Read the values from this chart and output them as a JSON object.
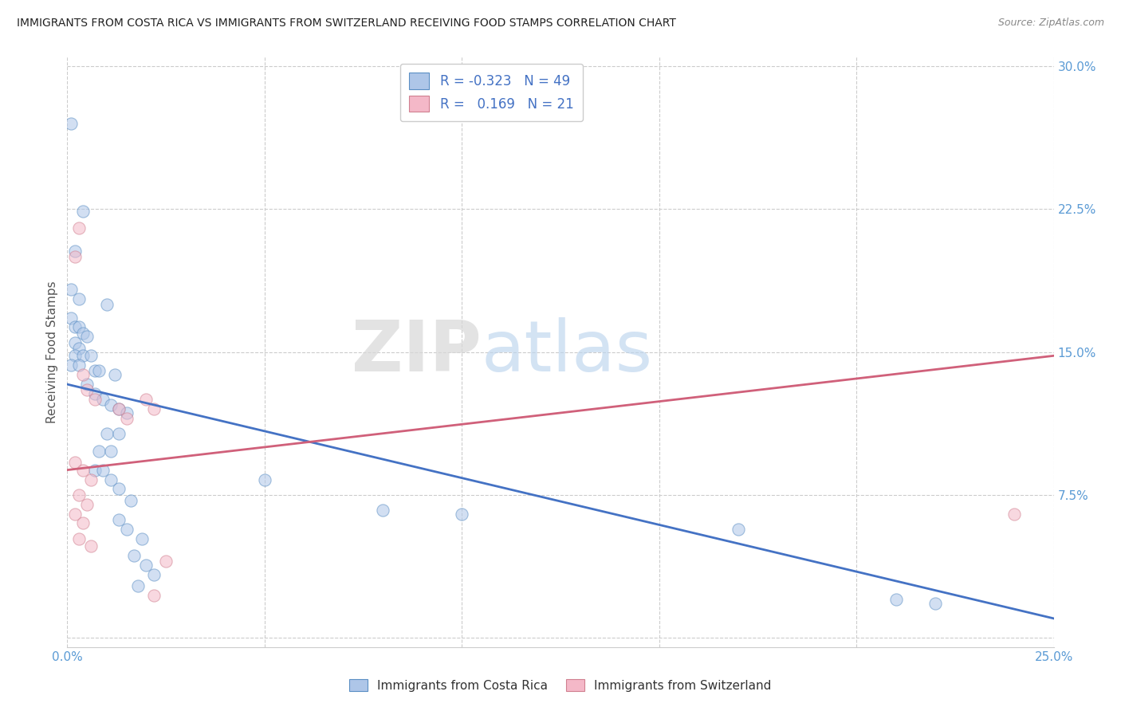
{
  "title": "IMMIGRANTS FROM COSTA RICA VS IMMIGRANTS FROM SWITZERLAND RECEIVING FOOD STAMPS CORRELATION CHART",
  "source": "Source: ZipAtlas.com",
  "ylabel": "Receiving Food Stamps",
  "xlim": [
    0.0,
    0.25
  ],
  "ylim": [
    -0.005,
    0.305
  ],
  "xticks": [
    0.0,
    0.05,
    0.1,
    0.15,
    0.2,
    0.25
  ],
  "xticklabels": [
    "0.0%",
    "",
    "",
    "",
    "",
    "25.0%"
  ],
  "yticks": [
    0.0,
    0.075,
    0.15,
    0.225,
    0.3
  ],
  "yticklabels": [
    "",
    "7.5%",
    "15.0%",
    "22.5%",
    "30.0%"
  ],
  "legend_entries": [
    {
      "label": "Immigrants from Costa Rica",
      "color": "#aec6e8",
      "edge": "#5b8fc4",
      "R": "-0.323",
      "N": "49"
    },
    {
      "label": "Immigrants from Switzerland",
      "color": "#f4b8c8",
      "edge": "#d08090",
      "R": "0.169",
      "N": "21"
    }
  ],
  "costa_rica_dots": [
    [
      0.001,
      0.27
    ],
    [
      0.004,
      0.224
    ],
    [
      0.002,
      0.203
    ],
    [
      0.001,
      0.183
    ],
    [
      0.003,
      0.178
    ],
    [
      0.01,
      0.175
    ],
    [
      0.001,
      0.168
    ],
    [
      0.002,
      0.163
    ],
    [
      0.003,
      0.163
    ],
    [
      0.004,
      0.16
    ],
    [
      0.005,
      0.158
    ],
    [
      0.002,
      0.155
    ],
    [
      0.003,
      0.152
    ],
    [
      0.002,
      0.148
    ],
    [
      0.004,
      0.148
    ],
    [
      0.006,
      0.148
    ],
    [
      0.001,
      0.143
    ],
    [
      0.003,
      0.143
    ],
    [
      0.007,
      0.14
    ],
    [
      0.008,
      0.14
    ],
    [
      0.012,
      0.138
    ],
    [
      0.005,
      0.133
    ],
    [
      0.007,
      0.128
    ],
    [
      0.009,
      0.125
    ],
    [
      0.011,
      0.122
    ],
    [
      0.013,
      0.12
    ],
    [
      0.015,
      0.118
    ],
    [
      0.01,
      0.107
    ],
    [
      0.013,
      0.107
    ],
    [
      0.008,
      0.098
    ],
    [
      0.011,
      0.098
    ],
    [
      0.007,
      0.088
    ],
    [
      0.009,
      0.088
    ],
    [
      0.011,
      0.083
    ],
    [
      0.013,
      0.078
    ],
    [
      0.016,
      0.072
    ],
    [
      0.013,
      0.062
    ],
    [
      0.015,
      0.057
    ],
    [
      0.019,
      0.052
    ],
    [
      0.017,
      0.043
    ],
    [
      0.02,
      0.038
    ],
    [
      0.022,
      0.033
    ],
    [
      0.018,
      0.027
    ],
    [
      0.05,
      0.083
    ],
    [
      0.08,
      0.067
    ],
    [
      0.1,
      0.065
    ],
    [
      0.17,
      0.057
    ],
    [
      0.21,
      0.02
    ],
    [
      0.22,
      0.018
    ]
  ],
  "switzerland_dots": [
    [
      0.002,
      0.2
    ],
    [
      0.003,
      0.215
    ],
    [
      0.004,
      0.138
    ],
    [
      0.005,
      0.13
    ],
    [
      0.007,
      0.125
    ],
    [
      0.002,
      0.092
    ],
    [
      0.004,
      0.088
    ],
    [
      0.006,
      0.083
    ],
    [
      0.003,
      0.075
    ],
    [
      0.005,
      0.07
    ],
    [
      0.002,
      0.065
    ],
    [
      0.004,
      0.06
    ],
    [
      0.003,
      0.052
    ],
    [
      0.006,
      0.048
    ],
    [
      0.013,
      0.12
    ],
    [
      0.015,
      0.115
    ],
    [
      0.02,
      0.125
    ],
    [
      0.022,
      0.12
    ],
    [
      0.025,
      0.04
    ],
    [
      0.24,
      0.065
    ],
    [
      0.022,
      0.022
    ]
  ],
  "costa_rica_line": {
    "x0": 0.0,
    "y0": 0.133,
    "x1": 0.25,
    "y1": 0.01
  },
  "switzerland_line": {
    "x0": 0.0,
    "y0": 0.088,
    "x1": 0.25,
    "y1": 0.148
  },
  "watermark_zip": "ZIP",
  "watermark_atlas": "atlas",
  "title_color": "#222222",
  "axis_tick_color": "#5b9bd5",
  "dot_alpha": 0.55,
  "dot_size": 120,
  "background_color": "#ffffff",
  "grid_color": "#cccccc",
  "cr_line_color": "#4472c4",
  "sw_line_color": "#d0607a"
}
